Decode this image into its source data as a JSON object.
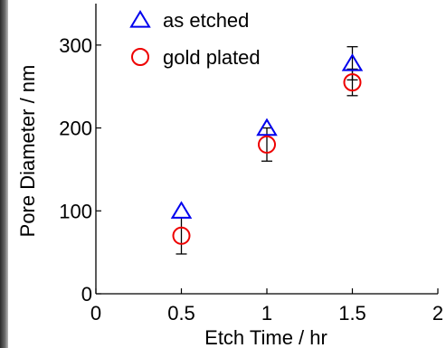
{
  "chart_data": {
    "type": "scatter",
    "xlabel": "Etch Time / hr",
    "ylabel": "Pore Diameter / nm",
    "xlim": [
      0,
      2
    ],
    "ylim": [
      0,
      350
    ],
    "xticks": [
      0,
      0.5,
      1,
      1.5,
      2
    ],
    "xtick_labels": [
      "0",
      "0.5",
      "1",
      "1.5",
      "2"
    ],
    "yticks": [
      0,
      100,
      200,
      300
    ],
    "ytick_labels": [
      "0",
      "100",
      "200",
      "300"
    ],
    "grid": false,
    "legend_position": "top-left",
    "series": [
      {
        "name": "as etched",
        "marker": "triangle",
        "color": "#0000ee",
        "x": [
          0.5,
          1,
          1.5
        ],
        "y": [
          100,
          200,
          278
        ],
        "error": [
          null,
          null,
          20
        ]
      },
      {
        "name": "gold plated",
        "marker": "circle",
        "color": "#ee0000",
        "x": [
          0.5,
          1,
          1.5
        ],
        "y": [
          70,
          180,
          255
        ],
        "error": [
          22,
          20,
          16
        ]
      }
    ]
  }
}
